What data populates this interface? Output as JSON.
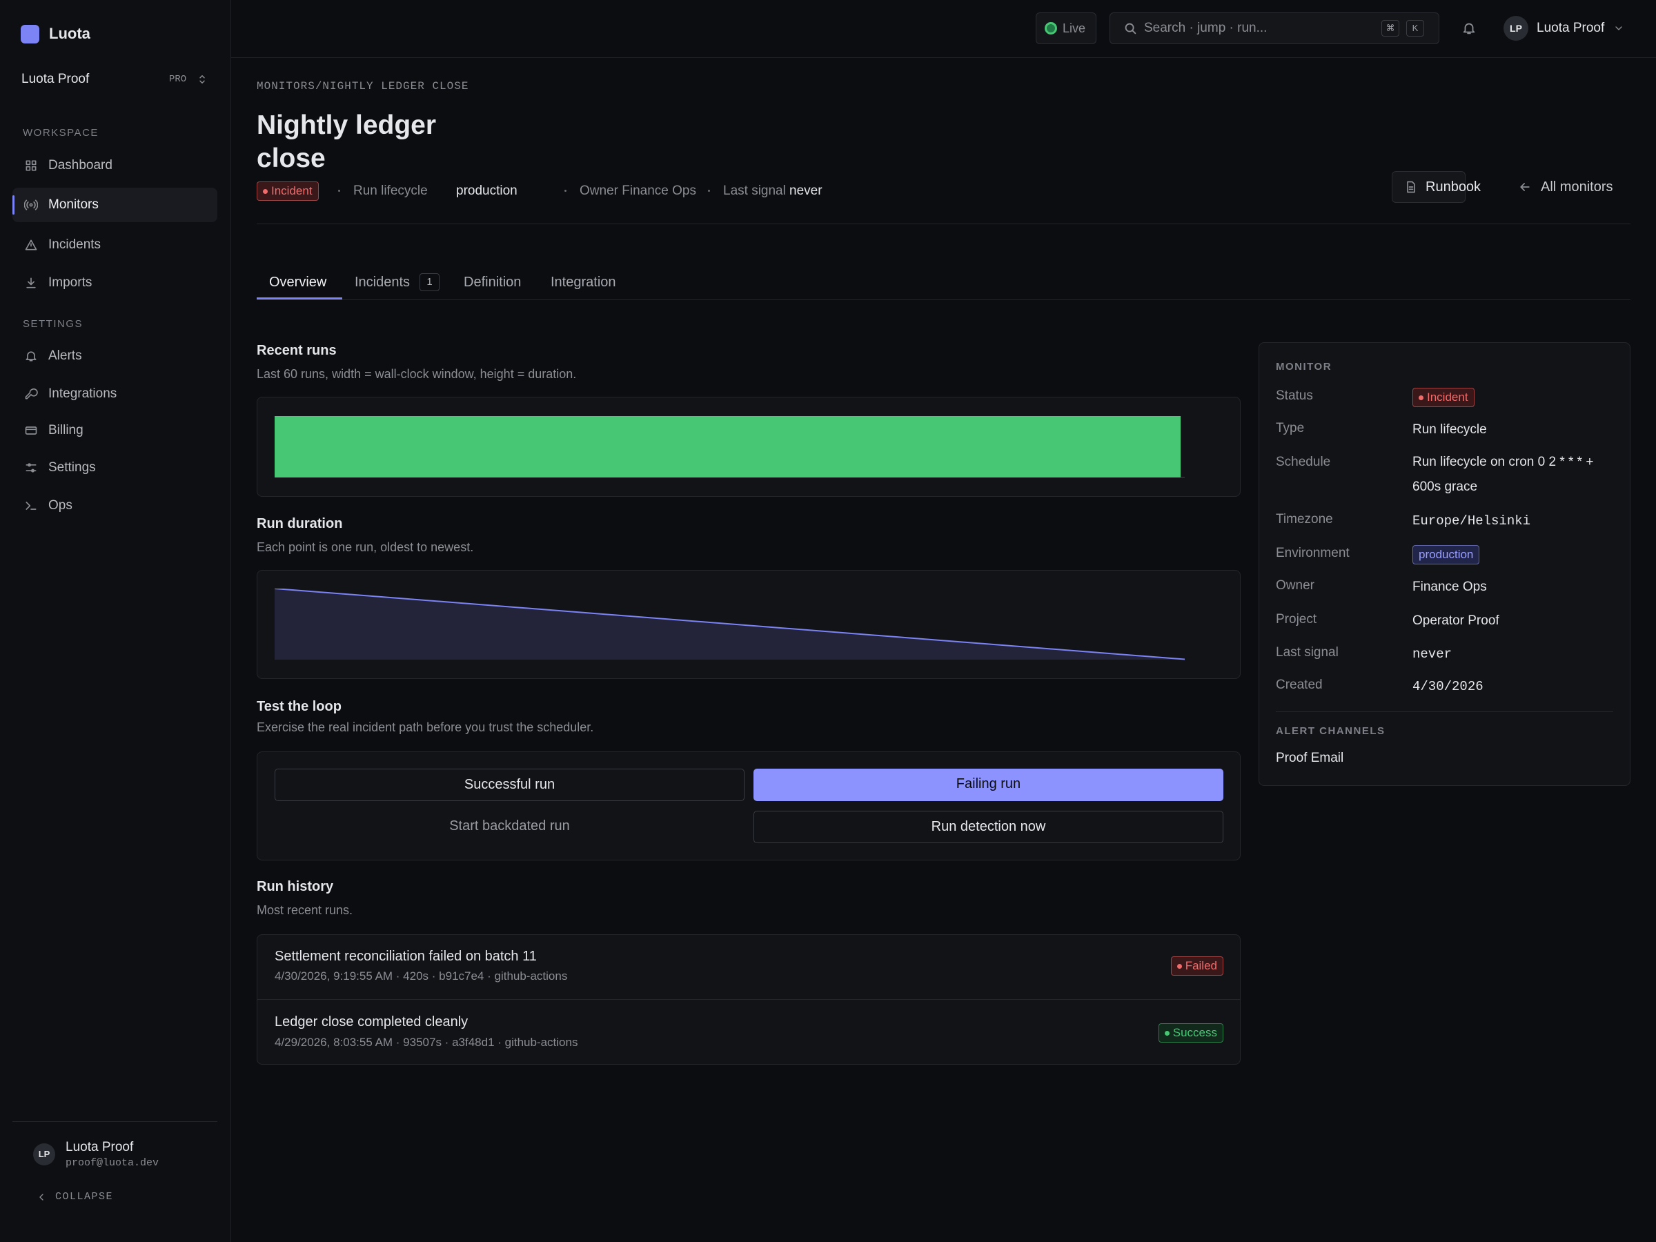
{
  "app": {
    "brand": "Luota",
    "workspace": "Luota Proof",
    "plan": "PRO"
  },
  "sidebar": {
    "sections": [
      {
        "title": "WORKSPACE",
        "items": [
          "Dashboard",
          "Monitors",
          "Incidents",
          "Imports"
        ]
      },
      {
        "title": "SETTINGS",
        "items": [
          "Alerts",
          "Integrations",
          "Billing",
          "Settings",
          "Ops"
        ]
      }
    ],
    "user": {
      "initials": "LP",
      "name": "Luota Proof",
      "email": "proof@luota.dev"
    },
    "collapse": "COLLAPSE"
  },
  "topbar": {
    "live": "Live",
    "search": "Search · jump · run...",
    "shortcut": [
      "⌘",
      "K"
    ],
    "user": {
      "initials": "LP",
      "name": "Luota Proof"
    }
  },
  "header": {
    "breadcrumb": "MONITORS/NIGHTLY LEDGER CLOSE",
    "title": "Nightly ledger close",
    "meta": {
      "status": "Incident",
      "type": "Run lifecycle",
      "environment": "production",
      "owner": "Owner Finance Ops",
      "last_signal_label": "Last signal",
      "last_signal": "never"
    },
    "actions": [
      "Runbook",
      "All monitors"
    ]
  },
  "tabs": [
    {
      "label": "Overview"
    },
    {
      "label": "Incidents",
      "count": 1
    },
    {
      "label": "Definition"
    },
    {
      "label": "Integration"
    }
  ],
  "recent_runs": {
    "title": "Recent runs",
    "subtitle": "Last 60 runs, width = wall-clock window, height = duration.",
    "type": "bar",
    "color": "#47c774",
    "values": [
      93507,
      420
    ]
  },
  "run_duration": {
    "title": "Run duration",
    "subtitle": "Each point is one run, oldest to newest.",
    "type": "area",
    "color": "#7c83f5",
    "values": [
      93507,
      420
    ]
  },
  "test_loop": {
    "title": "Test the loop",
    "subtitle": "Exercise the real incident path before you trust the scheduler.",
    "buttons": [
      "Successful run",
      "Failing run",
      "Start backdated run",
      "Run detection now"
    ]
  },
  "run_history": {
    "title": "Run history",
    "subtitle": "Most recent runs.",
    "items": [
      {
        "title": "Settlement reconciliation failed on batch 11",
        "meta": "4/30/2026, 9:19:55 AM · 420s · b91c7e4 · github-actions",
        "status": "Failed"
      },
      {
        "title": "Ledger close completed cleanly",
        "meta": "4/29/2026, 8:03:55 AM · 93507s · a3f48d1 · github-actions",
        "status": "Success"
      }
    ]
  },
  "panel": {
    "title": "MONITOR",
    "rows": [
      {
        "label": "Status",
        "value": "Incident"
      },
      {
        "label": "Type",
        "value": "Run lifecycle"
      },
      {
        "label": "Schedule",
        "value": "Run lifecycle on cron 0 2 * * * + 600s grace"
      },
      {
        "label": "Timezone",
        "value": "Europe/Helsinki"
      },
      {
        "label": "Environment",
        "value": "production"
      },
      {
        "label": "Owner",
        "value": "Finance Ops"
      },
      {
        "label": "Project",
        "value": "Operator Proof"
      },
      {
        "label": "Last signal",
        "value": "never"
      },
      {
        "label": "Created",
        "value": "4/30/2026"
      }
    ],
    "alert_title": "ALERT CHANNELS",
    "channels": [
      "Proof Email"
    ]
  }
}
